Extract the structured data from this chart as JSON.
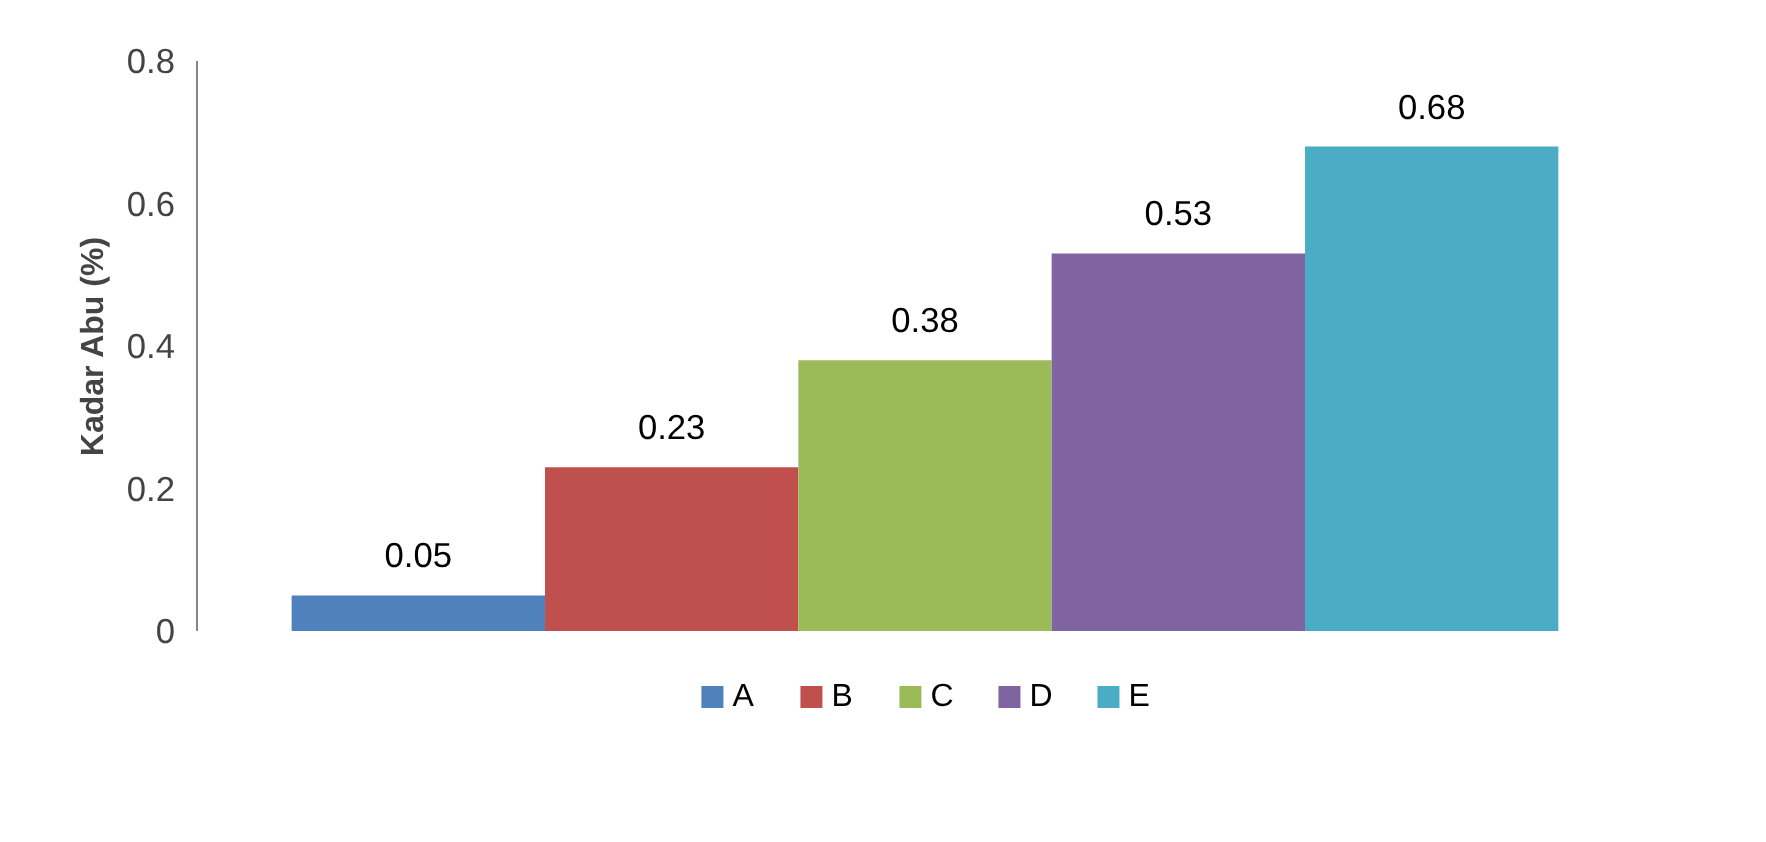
{
  "chart_data": {
    "type": "bar",
    "ylabel": "Kadar Abu (%)",
    "categories": [
      null
    ],
    "series": [
      {
        "name": "A",
        "color": "#4f81bd",
        "values": [
          0.05
        ]
      },
      {
        "name": "B",
        "color": "#c0504d",
        "values": [
          0.23
        ]
      },
      {
        "name": "C",
        "color": "#9bbb59",
        "values": [
          0.38
        ]
      },
      {
        "name": "D",
        "color": "#8064a2",
        "values": [
          0.53
        ]
      },
      {
        "name": "E",
        "color": "#4bacc6",
        "values": [
          0.68
        ]
      }
    ],
    "ylim": [
      0,
      0.8
    ],
    "yticks": [
      0,
      0.2,
      0.4,
      0.6,
      0.8
    ],
    "data_labels": true,
    "legend": "bottom",
    "grid": false
  }
}
